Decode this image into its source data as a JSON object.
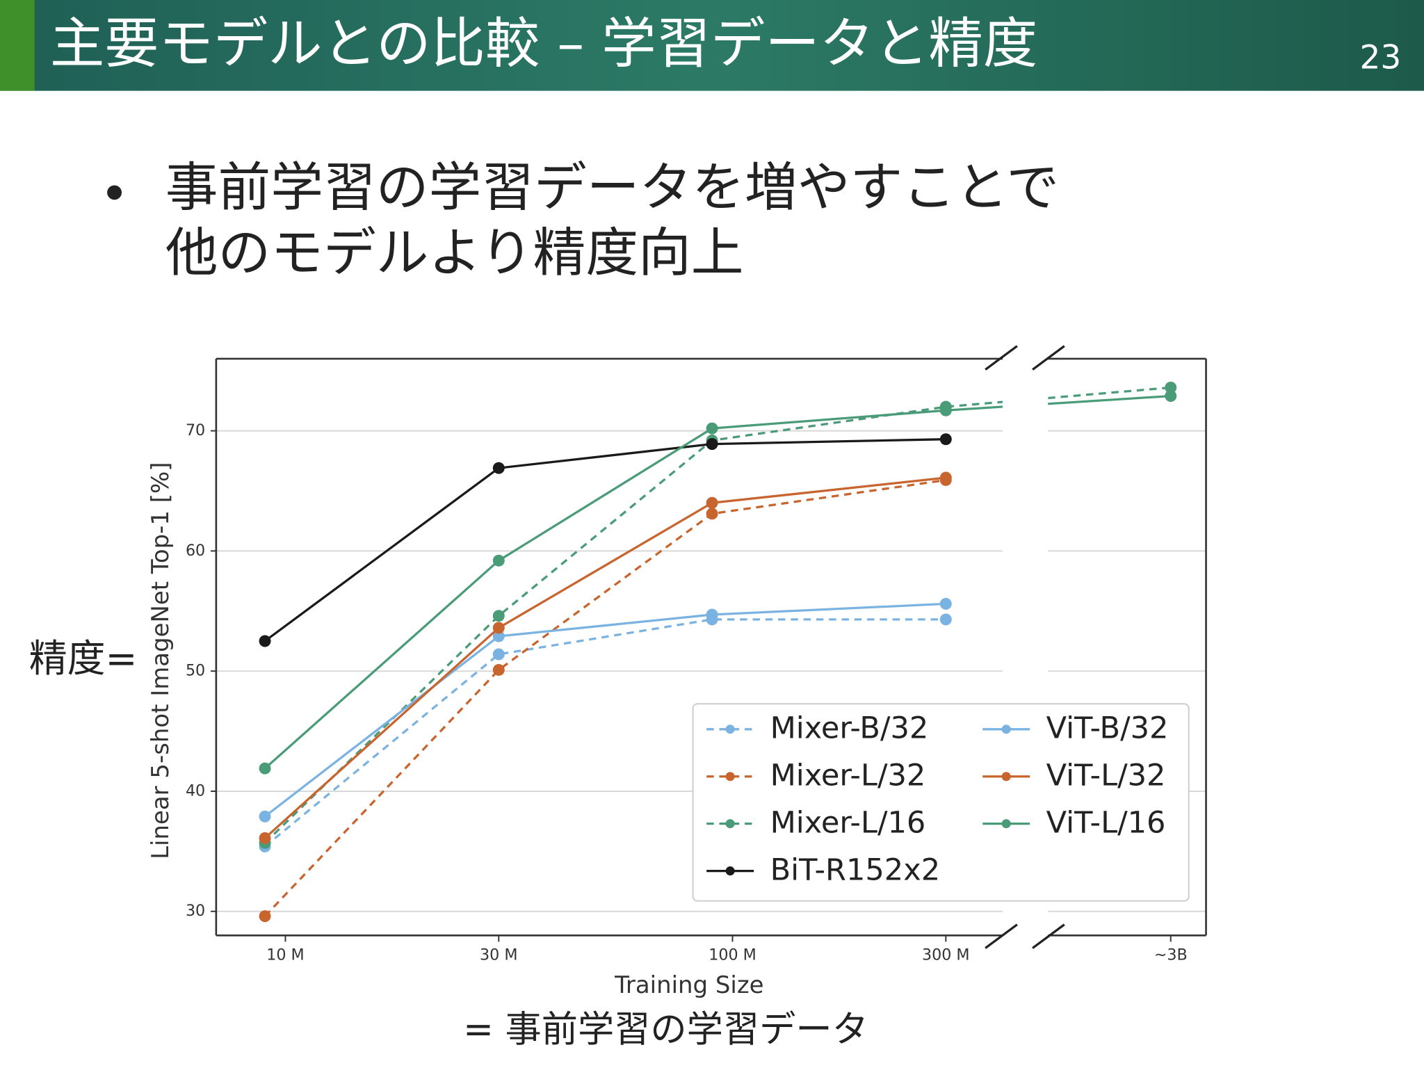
{
  "slide": {
    "title": "主要モデルとの比較 – 学習データと精度",
    "page_number": "23",
    "bullet": [
      "事前学習の学習データを増やすことで",
      "他のモデルより精度向上"
    ],
    "y_note": "精度=",
    "x_note": "= 事前学習の学習データ"
  },
  "chart_data": {
    "type": "line",
    "x_label": "Training Size",
    "y_label": "Linear 5-shot ImageNet Top-1 [%]",
    "x": [
      9,
      30,
      90,
      300,
      3000
    ],
    "log_x": true,
    "x_break": [
      400,
      1600
    ],
    "xlim": [
      7,
      3600
    ],
    "xticks": [
      {
        "value": 10,
        "label": "10 M"
      },
      {
        "value": 30,
        "label": "30 M"
      },
      {
        "value": 100,
        "label": "100 M"
      },
      {
        "value": 300,
        "label": "300 M"
      },
      {
        "value": 3000,
        "label": "~3B"
      }
    ],
    "ylim": [
      28,
      76
    ],
    "yticks": [
      30,
      40,
      50,
      60,
      70
    ],
    "grid": true,
    "legend": "lower right",
    "series": [
      {
        "name": "Mixer-B/32",
        "color": "#7ab3e2",
        "linestyle": "dashed",
        "values": [
          35.4,
          51.4,
          54.3,
          54.3,
          null
        ]
      },
      {
        "name": "Mixer-L/32",
        "color": "#c8642e",
        "linestyle": "dashed",
        "values": [
          29.6,
          50.1,
          63.1,
          65.9,
          null
        ]
      },
      {
        "name": "Mixer-L/16",
        "color": "#4a9c78",
        "linestyle": "dashed",
        "values": [
          35.7,
          54.6,
          69.2,
          72.0,
          73.6
        ]
      },
      {
        "name": "BiT-R152x2",
        "color": "#1a1a1a",
        "linestyle": "solid",
        "values": [
          52.5,
          66.9,
          68.9,
          69.3,
          null
        ]
      },
      {
        "name": "ViT-B/32",
        "color": "#7ab3e2",
        "linestyle": "solid",
        "values": [
          37.9,
          52.9,
          54.7,
          55.6,
          null
        ]
      },
      {
        "name": "ViT-L/32",
        "color": "#c8642e",
        "linestyle": "solid",
        "values": [
          36.1,
          53.6,
          64.0,
          66.1,
          null
        ]
      },
      {
        "name": "ViT-L/16",
        "color": "#4a9c78",
        "linestyle": "solid",
        "values": [
          41.9,
          59.2,
          70.2,
          71.7,
          72.9
        ]
      }
    ]
  }
}
